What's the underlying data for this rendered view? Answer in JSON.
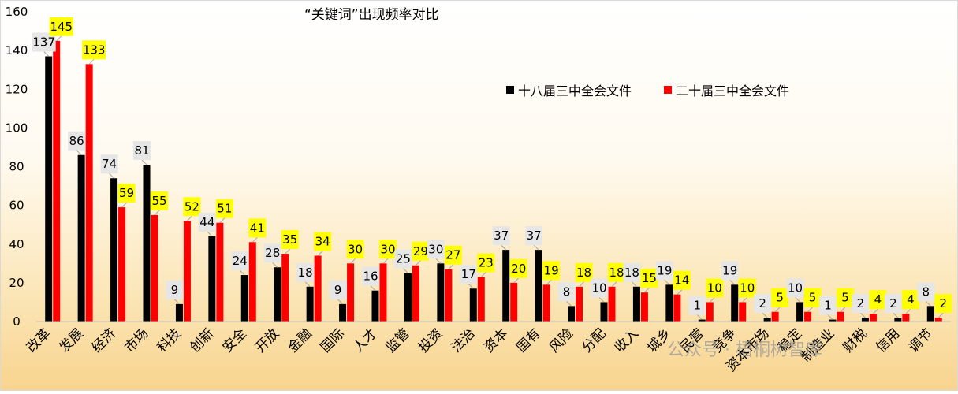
{
  "chart_data": {
    "type": "bar",
    "title": "“关键词”出现频率对比",
    "ylim": [
      0,
      160
    ],
    "yticks": [
      0,
      20,
      40,
      60,
      80,
      100,
      120,
      140,
      160
    ],
    "grid": false,
    "legend_position": "top-right",
    "categories": [
      "改革",
      "发展",
      "经济",
      "市场",
      "科技",
      "创新",
      "安全",
      "开放",
      "金融",
      "国际",
      "人才",
      "监管",
      "投资",
      "法治",
      "资本",
      "国有",
      "风险",
      "分配",
      "收入",
      "城乡",
      "民营",
      "竞争",
      "资本市场",
      "稳定",
      "制造业",
      "财税",
      "信用",
      "调节"
    ],
    "series": [
      {
        "name": "十八届三中全会文件",
        "color": "#000000",
        "label_bg": "#e6e6e6",
        "values": [
          137,
          86,
          74,
          81,
          9,
          44,
          24,
          28,
          18,
          9,
          16,
          25,
          30,
          17,
          37,
          37,
          8,
          10,
          18,
          19,
          1,
          19,
          2,
          10,
          1,
          2,
          2,
          8
        ]
      },
      {
        "name": "二十届三中全会文件",
        "color": "#ff0000",
        "label_bg": "#ffff00",
        "values": [
          145,
          133,
          59,
          55,
          52,
          51,
          41,
          35,
          34,
          30,
          30,
          29,
          27,
          23,
          20,
          19,
          18,
          18,
          15,
          14,
          10,
          10,
          5,
          5,
          5,
          4,
          4,
          2
        ]
      }
    ]
  },
  "watermark": {
    "text": "公众号 · 梧桐树智库"
  }
}
